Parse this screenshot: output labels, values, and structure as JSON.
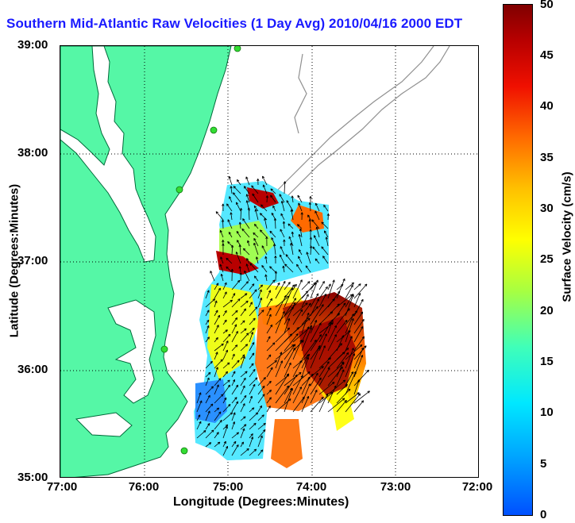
{
  "title": "Southern Mid-Atlantic Raw Velocities (1 Day Avg) 2010/04/16 2000 EDT",
  "axes": {
    "xlabel": "Longitude (Degrees:Minutes)",
    "ylabel": "Latitude (Degrees:Minutes)",
    "x_ticks": [
      "77:00",
      "76:00",
      "75:00",
      "74:00",
      "73:00",
      "72:00"
    ],
    "y_ticks": [
      "39:00",
      "38:00",
      "37:00",
      "36:00",
      "35:00"
    ]
  },
  "colorbar": {
    "label": "Surface Velocity (cm/s)",
    "ticks": [
      "50",
      "45",
      "40",
      "35",
      "30",
      "25",
      "20",
      "15",
      "10",
      "5",
      "0"
    ],
    "range": [
      0,
      50
    ],
    "colors": [
      "#0050ff",
      "#00e8ff",
      "#40ffb8",
      "#ffff00",
      "#ff6a00",
      "#800000"
    ]
  },
  "colors": {
    "land": "#55f7a6",
    "coastline": "#006a3a",
    "bathymetry": "#909090",
    "station": "#33dd33",
    "arrows": "#000000",
    "title": "#1a1aff"
  }
}
